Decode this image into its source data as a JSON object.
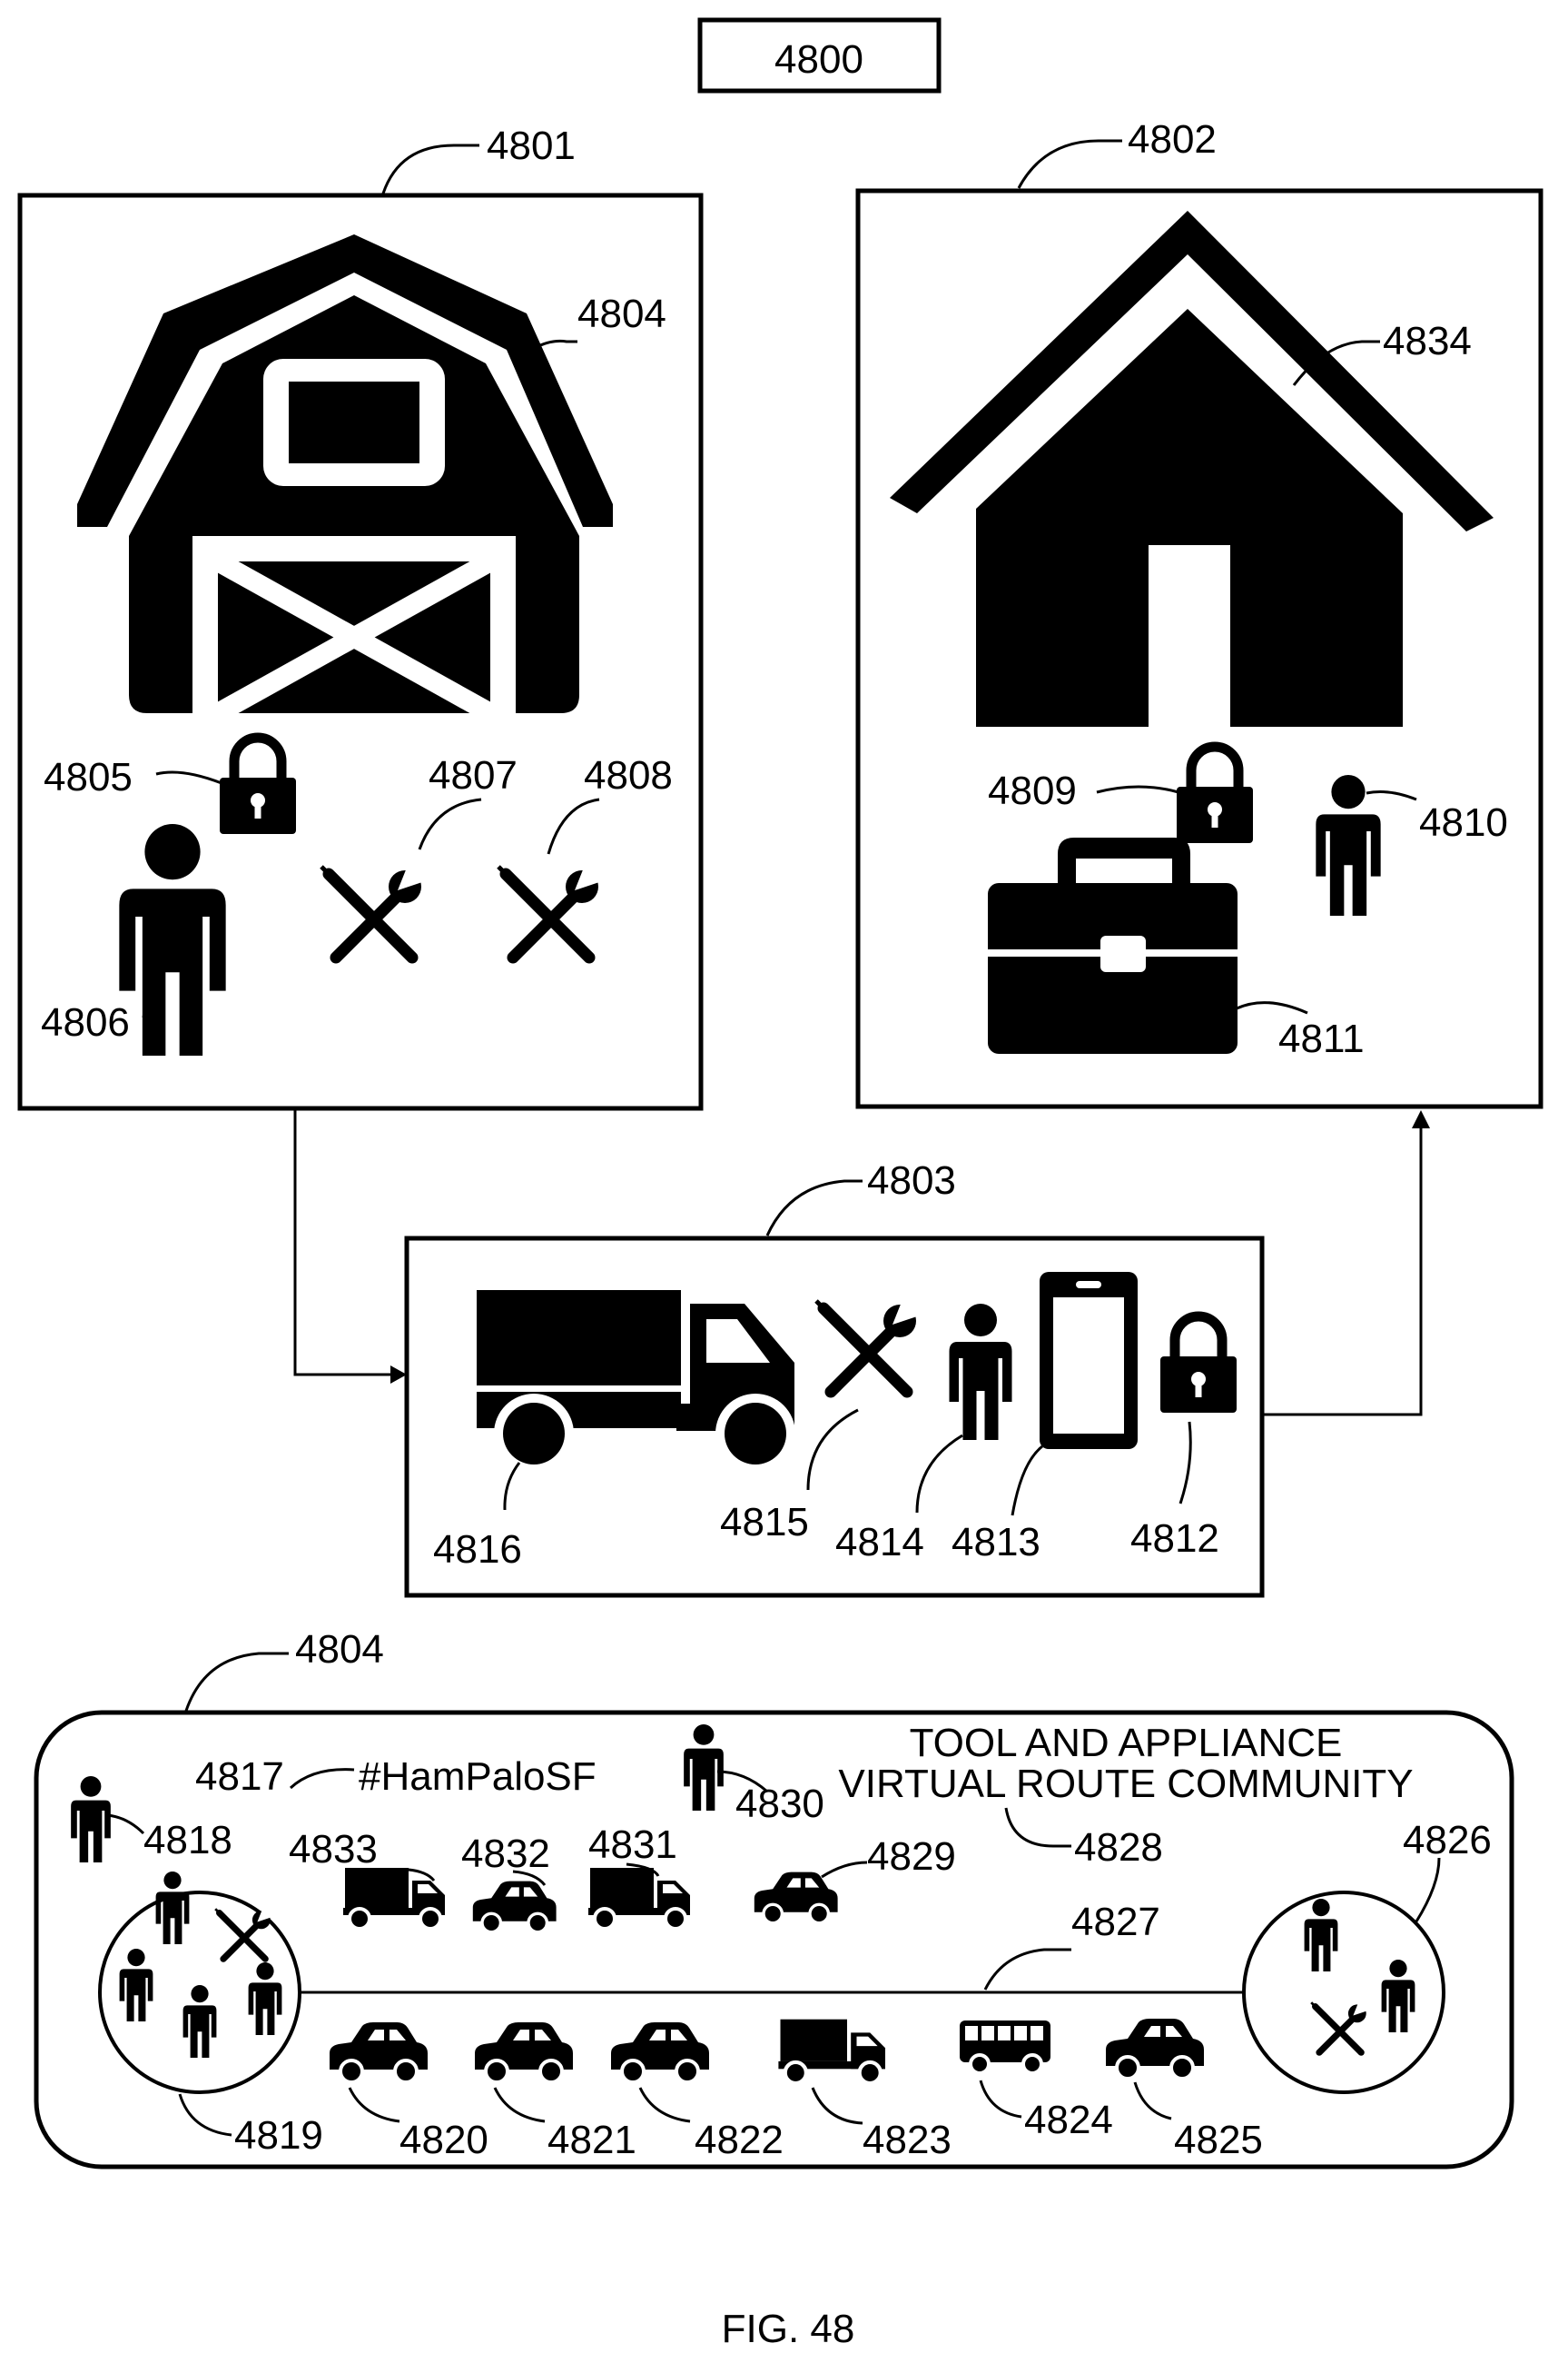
{
  "figure": {
    "title_ref": "4800",
    "caption": "FIG. 48"
  },
  "panels": {
    "barn": {
      "ref": "4801",
      "building_ref": "4804",
      "lock_ref": "4805",
      "person_ref": "4806",
      "tool1_ref": "4807",
      "tool2_ref": "4808"
    },
    "home": {
      "ref": "4802",
      "building_ref": "4834",
      "lock_ref": "4809",
      "person_ref": "4810",
      "toolbox_ref": "4811"
    },
    "transport": {
      "ref": "4803",
      "truck_ref": "4816",
      "tool_ref": "4815",
      "person_ref": "4814",
      "phone_ref": "4813",
      "lock_ref": "4812"
    },
    "community": {
      "ref": "4804",
      "hashtag_ref": "4817",
      "hashtag": "#HamPaloSF",
      "title_line1": "TOOL AND APPLIANCE",
      "title_line2": "VIRTUAL ROUTE COMMUNITY",
      "title_ref": "4828",
      "route_ref": "4827",
      "refs": {
        "r4818": "4818",
        "r4819": "4819",
        "r4820": "4820",
        "r4821": "4821",
        "r4822": "4822",
        "r4823": "4823",
        "r4824": "4824",
        "r4825": "4825",
        "r4826": "4826",
        "r4829": "4829",
        "r4830": "4830",
        "r4831": "4831",
        "r4832": "4832",
        "r4833": "4833"
      }
    }
  },
  "icons": [
    "barn-icon",
    "house-icon",
    "lock-icon",
    "person-icon",
    "tools-icon",
    "toolbox-icon",
    "truck-icon",
    "phone-icon",
    "car-icon",
    "bus-icon"
  ]
}
